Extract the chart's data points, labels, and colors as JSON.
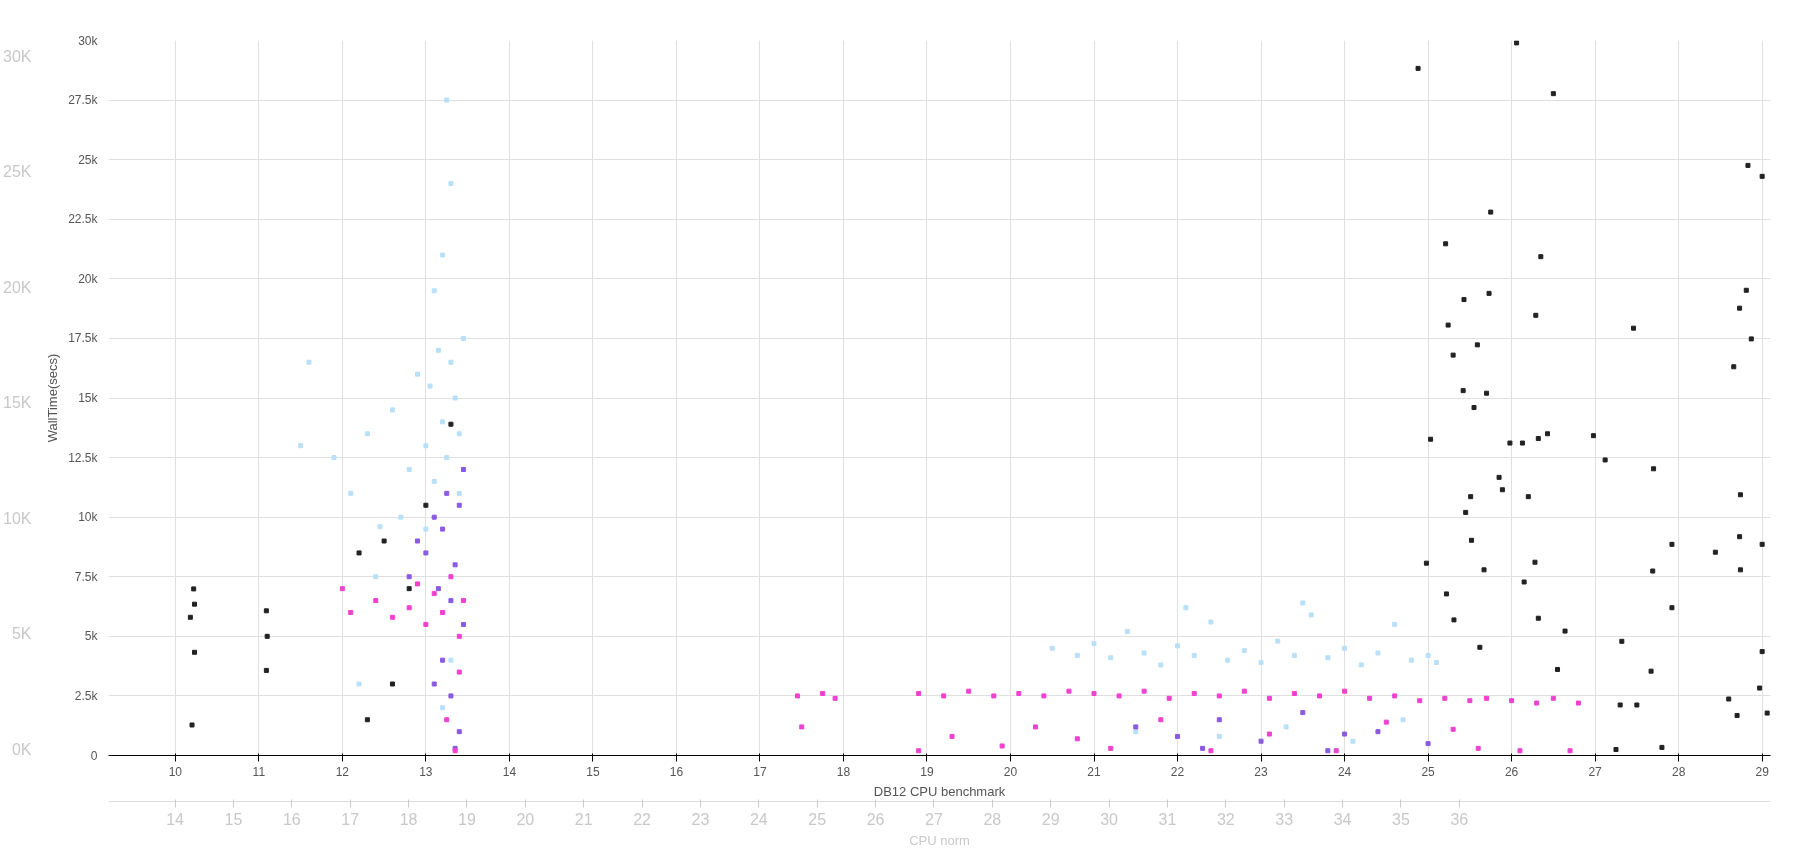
{
  "chart_data": {
    "type": "scatter",
    "xlabel": "DB12 CPU benchmark",
    "ylabel": "WallTime(secs)",
    "x2label": "CPU norm",
    "xlim": [
      9.2,
      29.1
    ],
    "xticks": [
      10,
      11,
      12,
      13,
      14,
      15,
      16,
      17,
      18,
      19,
      20,
      21,
      22,
      23,
      24,
      25,
      26,
      27,
      28,
      29
    ],
    "ylim": [
      0,
      30000
    ],
    "yticks": [
      {
        "value": 0,
        "label": "0"
      },
      {
        "value": 2500,
        "label": "2.5k"
      },
      {
        "value": 5000,
        "label": "5k"
      },
      {
        "value": 7500,
        "label": "7.5k"
      },
      {
        "value": 10000,
        "label": "10k"
      },
      {
        "value": 12500,
        "label": "12.5k"
      },
      {
        "value": 15000,
        "label": "15k"
      },
      {
        "value": 17500,
        "label": "17.5k"
      },
      {
        "value": 20000,
        "label": "20k"
      },
      {
        "value": 22500,
        "label": "22.5k"
      },
      {
        "value": 25000,
        "label": "25k"
      },
      {
        "value": 27500,
        "label": "27.5k"
      },
      {
        "value": 30000,
        "label": "30k"
      }
    ],
    "x2lim": [
      12.86,
      41.33
    ],
    "x2ticks": [
      14,
      15,
      16,
      17,
      18,
      19,
      20,
      21,
      22,
      23,
      24,
      25,
      26,
      27,
      28,
      29,
      30,
      31,
      32,
      33,
      34,
      35,
      36
    ],
    "y2lim": [
      -260,
      30690
    ],
    "y2ticks": [
      {
        "value": 0,
        "label": "0K"
      },
      {
        "value": 5000,
        "label": "5K"
      },
      {
        "value": 10000,
        "label": "10K"
      },
      {
        "value": 15000,
        "label": "15K"
      },
      {
        "value": 20000,
        "label": "20K"
      },
      {
        "value": 25000,
        "label": "25K"
      },
      {
        "value": 30000,
        "label": "30K"
      }
    ],
    "grid": true,
    "marker": "square",
    "series": [
      {
        "color": "#b9e0f7",
        "x": [
          12.1,
          12.3,
          12.45,
          12.6,
          12.8,
          12.9,
          13.0,
          13.05,
          13.1,
          13.15,
          13.2,
          13.25,
          13.3,
          13.35,
          13.4,
          13.45,
          13.1,
          13.2,
          13.3,
          13.25,
          12.7,
          12.4,
          11.9,
          11.5,
          11.6,
          12.2,
          13.4,
          13.0,
          13.3,
          13.2,
          20.5,
          20.8,
          21.0,
          21.2,
          21.4,
          21.6,
          21.8,
          22.0,
          22.2,
          22.4,
          22.6,
          22.8,
          23.0,
          23.2,
          23.4,
          23.6,
          23.8,
          24.0,
          24.2,
          24.4,
          24.6,
          24.8,
          25.0,
          25.1,
          22.1,
          23.5,
          21.5,
          22.5,
          23.3,
          24.1,
          24.7
        ],
        "values": [
          11000,
          13500,
          9600,
          14500,
          12000,
          16000,
          13000,
          15500,
          11500,
          17000,
          14000,
          12500,
          16500,
          15000,
          13500,
          17500,
          19500,
          21000,
          24000,
          27500,
          10000,
          7500,
          12500,
          13000,
          16500,
          3000,
          11000,
          9500,
          4000,
          2000,
          4500,
          4200,
          4700,
          4100,
          5200,
          4300,
          3800,
          4600,
          4200,
          5600,
          4000,
          4400,
          3900,
          4800,
          4200,
          5900,
          4100,
          4500,
          3800,
          4300,
          5500,
          4000,
          4200,
          3900,
          6200,
          6400,
          1000,
          800,
          1200,
          600,
          1500
        ]
      },
      {
        "color": "#8a5ae0",
        "x": [
          13.0,
          13.1,
          13.15,
          13.2,
          13.25,
          13.3,
          13.35,
          13.4,
          13.45,
          13.2,
          13.3,
          13.4,
          13.35,
          13.1,
          12.9,
          13.45,
          12.8,
          21.5,
          22.0,
          22.5,
          23.0,
          23.5,
          24.0,
          24.4,
          25.0,
          22.3,
          23.8
        ],
        "values": [
          8500,
          10000,
          7000,
          9500,
          11000,
          6500,
          8000,
          10500,
          5500,
          4000,
          2500,
          1000,
          300,
          3000,
          9000,
          12000,
          7500,
          1200,
          800,
          1500,
          600,
          1800,
          900,
          1000,
          500,
          300,
          200
        ]
      },
      {
        "color": "#f040d0",
        "x": [
          12.0,
          12.1,
          12.4,
          12.6,
          12.8,
          12.9,
          13.0,
          13.1,
          13.2,
          13.3,
          13.4,
          13.45,
          13.35,
          13.25,
          13.4,
          17.45,
          17.75,
          17.9,
          18.9,
          19.2,
          19.5,
          19.8,
          20.1,
          20.4,
          20.7,
          21.0,
          21.3,
          21.6,
          21.9,
          22.2,
          22.5,
          22.8,
          23.1,
          23.4,
          23.7,
          24.0,
          24.3,
          24.6,
          24.9,
          25.2,
          25.5,
          25.7,
          26.0,
          26.3,
          26.5,
          26.8,
          19.3,
          19.9,
          20.3,
          20.8,
          21.2,
          21.8,
          22.4,
          23.1,
          23.9,
          24.5,
          25.3,
          25.6,
          26.1,
          26.7,
          17.5,
          18.9
        ],
        "values": [
          7000,
          6000,
          6500,
          5800,
          6200,
          7200,
          5500,
          6800,
          6000,
          7500,
          5000,
          6500,
          200,
          1500,
          3500,
          2500,
          2600,
          2400,
          2600,
          2500,
          2700,
          2500,
          2600,
          2500,
          2700,
          2600,
          2500,
          2700,
          2400,
          2600,
          2500,
          2700,
          2400,
          2600,
          2500,
          2700,
          2400,
          2500,
          2300,
          2400,
          2300,
          2400,
          2300,
          2200,
          2400,
          2200,
          800,
          400,
          1200,
          700,
          300,
          1500,
          200,
          900,
          200,
          1400,
          1100,
          300,
          200,
          200,
          1200,
          200
        ]
      },
      {
        "color": "#222222",
        "x": [
          26.06,
          24.88,
          26.5,
          28.83,
          29.0,
          25.75,
          25.21,
          26.35,
          28.81,
          25.73,
          25.43,
          26.29,
          28.73,
          25.24,
          27.46,
          28.87,
          25.59,
          25.3,
          28.66,
          25.42,
          25.7,
          25.55,
          25.03,
          25.98,
          26.13,
          26.32,
          26.43,
          26.98,
          27.12,
          27.7,
          25.85,
          25.89,
          25.51,
          26.2,
          28.74,
          25.45,
          25.52,
          27.92,
          29.0,
          28.44,
          28.73,
          24.98,
          26.28,
          25.67,
          27.69,
          28.74,
          26.15,
          25.22,
          27.92,
          26.32,
          25.31,
          26.64,
          27.32,
          25.62,
          29.0,
          27.67,
          26.55,
          28.97,
          28.6,
          27.3,
          27.5,
          28.7,
          29.06,
          27.8,
          27.25,
          10.22,
          10.23,
          10.18,
          10.23,
          11.09,
          11.1,
          11.09,
          10.2,
          12.2,
          12.5,
          12.8,
          13.0,
          13.3,
          12.6,
          12.3
        ],
        "values": [
          29900,
          28830,
          27770,
          24760,
          24300,
          22800,
          21470,
          20930,
          19520,
          19390,
          19130,
          18470,
          18770,
          18060,
          17930,
          17480,
          17230,
          16800,
          16310,
          15310,
          15200,
          14600,
          13270,
          13110,
          13110,
          13300,
          13500,
          13420,
          12400,
          12030,
          11670,
          11150,
          10860,
          10860,
          10940,
          10200,
          9030,
          8860,
          8860,
          8530,
          9180,
          8070,
          8110,
          7790,
          7740,
          7790,
          7280,
          6780,
          6200,
          5760,
          5690,
          5220,
          4790,
          4540,
          4360,
          3540,
          3610,
          2830,
          2370,
          2120,
          2120,
          1680,
          1780,
          340,
          250,
          6990,
          6350,
          5800,
          4330,
          6070,
          5000,
          3570,
          1280,
          8500,
          9000,
          7000,
          10500,
          13900,
          3000,
          1500
        ]
      }
    ]
  }
}
